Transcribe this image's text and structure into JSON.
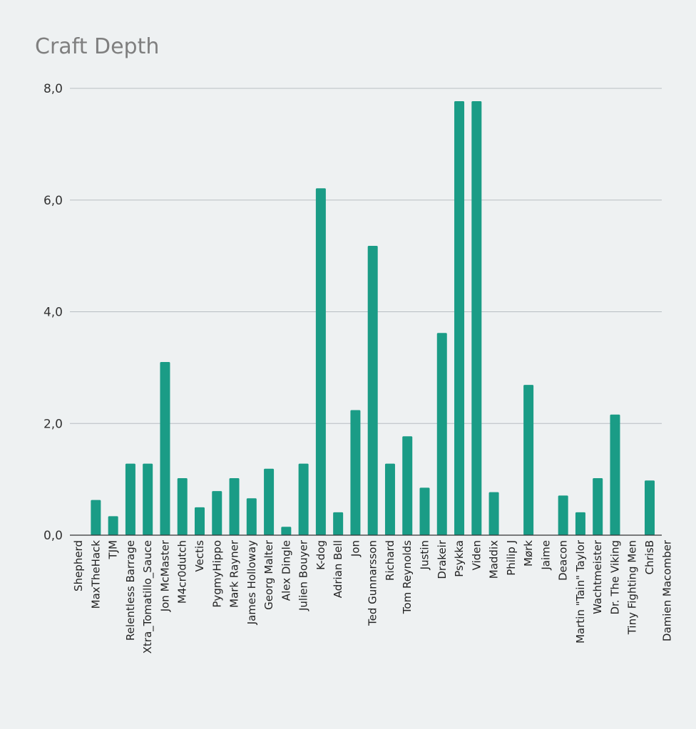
{
  "chart_data": {
    "type": "bar",
    "title": "Craft Depth",
    "xlabel": "",
    "ylabel": "",
    "ylim": [
      0,
      8
    ],
    "yticks": [
      0,
      2,
      4,
      6,
      8
    ],
    "ytick_labels": [
      "0,0",
      "2,0",
      "4,0",
      "6,0",
      "8,0"
    ],
    "grid": true,
    "bar_color": "#1a9c86",
    "categories": [
      "Shepherd",
      "MaxTheHack",
      "TJM",
      "Relentless Barrage",
      "Xtra_Tomatillo_Sauce",
      "Jon McMaster",
      "M4cr0dutch",
      "Vectis",
      "PygmyHippo",
      "Mark Rayner",
      "James Holloway",
      "Georg Malter",
      "Alex Dingle",
      "Julien Bouyer",
      "K-dog",
      "Adrian Bell",
      "Jon",
      "Ted Gunnarsson",
      "Richard",
      "Tom Reynolds",
      "Justin",
      "Drakeir",
      "Psykka",
      "Viden",
      "Maddix",
      "Philip J",
      "Mørk",
      "Jaime",
      "Deacon",
      "Martin \"Tain\" Taylor",
      "Wachtmeister",
      "Dr. The Viking",
      "Tiny Fighting Men",
      "ChrisB",
      "Damien Macomber"
    ],
    "values": [
      0,
      0.63,
      0.34,
      1.28,
      1.28,
      3.1,
      1.02,
      0.5,
      0.79,
      1.02,
      0.66,
      1.19,
      0.15,
      1.28,
      6.21,
      0.41,
      2.24,
      5.18,
      1.28,
      1.77,
      0.85,
      3.62,
      7.77,
      7.77,
      0.77,
      0,
      2.69,
      0,
      0.71,
      0.41,
      1.02,
      2.16,
      0,
      0.98,
      0
    ]
  }
}
